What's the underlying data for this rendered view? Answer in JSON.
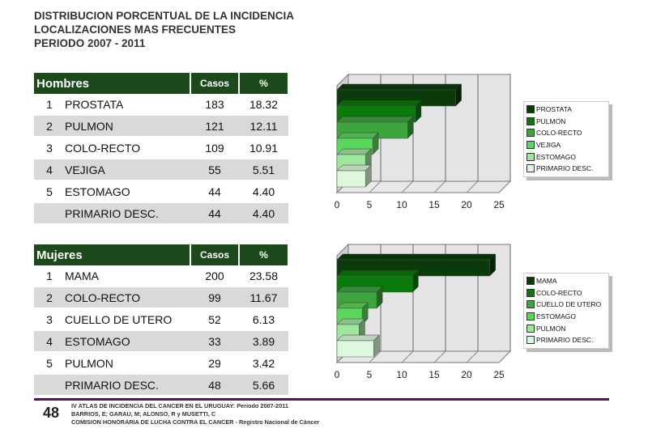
{
  "title": [
    "DISTRIBUCION PORCENTUAL DE LA INCIDENCIA",
    "LOCALIZACIONES MAS FRECUENTES",
    "PERIODO 2007 - 2011"
  ],
  "tables": [
    {
      "header": [
        "Hombres",
        "Casos",
        "%"
      ],
      "rows": [
        [
          "1",
          "PROSTATA",
          "183",
          "18.32"
        ],
        [
          "2",
          "PULMON",
          "121",
          "12.11"
        ],
        [
          "3",
          "COLO-RECTO",
          "109",
          "10.91"
        ],
        [
          "4",
          "VEJIGA",
          "55",
          "5.51"
        ],
        [
          "5",
          "ESTOMAGO",
          "44",
          "4.40"
        ],
        [
          "",
          "PRIMARIO DESC.",
          "44",
          "4.40"
        ]
      ]
    },
    {
      "header": [
        "Mujeres",
        "Casos",
        "%"
      ],
      "rows": [
        [
          "1",
          "MAMA",
          "200",
          "23.58"
        ],
        [
          "2",
          "COLO-RECTO",
          "99",
          "11.67"
        ],
        [
          "3",
          "CUELLO DE UTERO",
          "52",
          "6.13"
        ],
        [
          "4",
          "ESTOMAGO",
          "33",
          "3.89"
        ],
        [
          "5",
          "PULMON",
          "29",
          "3.42"
        ],
        [
          "",
          "PRIMARIO DESC.",
          "48",
          "5.66"
        ]
      ]
    }
  ],
  "chart_data": [
    {
      "type": "bar",
      "orientation": "horizontal",
      "style": "3d",
      "categories": [
        "PROSTATA",
        "PULMON",
        "COLO-RECTO",
        "VEJIGA",
        "ESTOMAGO",
        "PRIMARIO DESC."
      ],
      "values": [
        18.32,
        12.11,
        10.91,
        5.51,
        4.4,
        4.4
      ],
      "xlim": [
        0,
        25
      ],
      "ticks": [
        "0",
        "5",
        "10",
        "15",
        "20",
        "25"
      ],
      "grid": true,
      "legend": "right",
      "colors": [
        "#0b3b0b",
        "#0a7a0a",
        "#3ea53e",
        "#5cd65c",
        "#9fe69f",
        "#ddf8dd"
      ]
    },
    {
      "type": "bar",
      "orientation": "horizontal",
      "style": "3d",
      "categories": [
        "MAMA",
        "COLO-RECTO",
        "CUELLO DE UTERO",
        "ESTOMAGO",
        "PULMON",
        "PRIMARIO DESC."
      ],
      "values": [
        23.58,
        11.67,
        6.13,
        3.89,
        3.42,
        5.66
      ],
      "xlim": [
        0,
        25
      ],
      "ticks": [
        "0",
        "5",
        "10",
        "15",
        "20",
        "25"
      ],
      "grid": true,
      "legend": "right",
      "colors": [
        "#0b3b0b",
        "#0a7a0a",
        "#3ea53e",
        "#5cd65c",
        "#9fe69f",
        "#ddf8dd"
      ]
    }
  ],
  "footer": {
    "page": "48",
    "lines": [
      "IV ATLAS DE INCIDENCIA DEL CANCER EN EL URUGUAY:  Periodo 2007-2011",
      "BARRIOS, E; GARAU, M; ALONSO, R y MUSETTI, C",
      "COMISION HONORARIA DE LUCHA CONTRA EL CANCER - Registro Nacional de Cáncer"
    ]
  }
}
